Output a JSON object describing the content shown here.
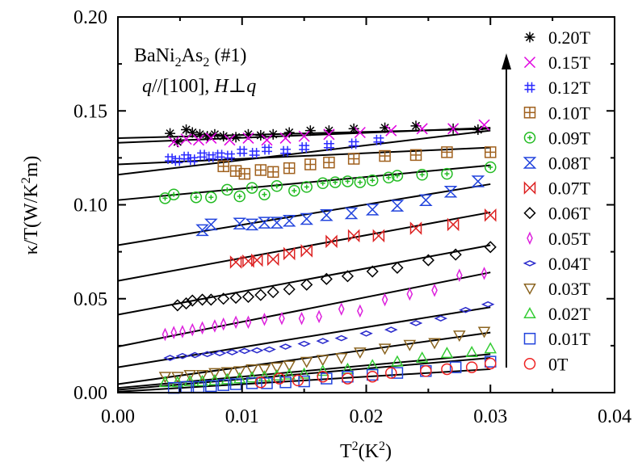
{
  "chart_data": {
    "type": "scatter",
    "title_lines": {
      "compound": "BaNi",
      "sub1": "2",
      "compound2": "As",
      "sub2": "2",
      "sample": " (#1)",
      "q": "q",
      "geometry": "//[100], ",
      "H": "H",
      "perp": "⊥",
      "q2": "q"
    },
    "xlabel": {
      "main": "T",
      "sup": "2",
      "unit": "(K",
      "unitsup": "2",
      "close": ")"
    },
    "ylabel": {
      "main": "κ/T(W/K",
      "sup": "2",
      "unit": "m)"
    },
    "xlim": [
      0.0,
      0.04
    ],
    "ylim": [
      0.0,
      0.2
    ],
    "xticks": [
      0.0,
      0.01,
      0.02,
      0.03,
      0.04
    ],
    "xtick_labels": [
      "0.00",
      "0.01",
      "0.02",
      "0.03",
      "0.04"
    ],
    "yticks": [
      0.0,
      0.05,
      0.1,
      0.15,
      0.2
    ],
    "ytick_labels": [
      "0.00",
      "0.05",
      "0.10",
      "0.15",
      "0.20"
    ],
    "arrow": "increasing field",
    "series": [
      {
        "name": "0.20T",
        "marker": "asterisk",
        "color": "#000000",
        "fit": [
          0.0,
          0.1355,
          0.03,
          0.1405
        ],
        "x": [
          0.0042,
          0.0048,
          0.0055,
          0.006,
          0.0066,
          0.0072,
          0.0078,
          0.0085,
          0.0095,
          0.0105,
          0.0115,
          0.0125,
          0.0138,
          0.0155,
          0.017,
          0.019,
          0.0215,
          0.024,
          0.027,
          0.029
        ],
        "y": [
          0.138,
          0.1335,
          0.14,
          0.1385,
          0.1375,
          0.1365,
          0.1375,
          0.1365,
          0.136,
          0.1375,
          0.137,
          0.1375,
          0.1385,
          0.1395,
          0.1395,
          0.1405,
          0.141,
          0.142,
          0.1405,
          0.14
        ]
      },
      {
        "name": "0.15T",
        "marker": "x",
        "color": "#e000e0",
        "fit": [
          0.0,
          0.133,
          0.03,
          0.141
        ],
        "x": [
          0.0045,
          0.0055,
          0.0065,
          0.0075,
          0.009,
          0.0105,
          0.012,
          0.0135,
          0.015,
          0.017,
          0.0195,
          0.022,
          0.0245,
          0.027,
          0.0295
        ],
        "y": [
          0.1335,
          0.135,
          0.1345,
          0.1355,
          0.1345,
          0.1355,
          0.1345,
          0.1355,
          0.1365,
          0.1375,
          0.1385,
          0.1395,
          0.1405,
          0.1405,
          0.1425
        ]
      },
      {
        "name": "0.12T",
        "marker": "hash",
        "color": "#2a2aff",
        "fit": [
          0.0,
          0.116,
          0.03,
          0.1395
        ],
        "x": [
          0.0042,
          0.0048,
          0.0055,
          0.006,
          0.0068,
          0.0075,
          0.0082,
          0.009,
          0.01,
          0.011,
          0.012,
          0.0135,
          0.015,
          0.017,
          0.019,
          0.021
        ],
        "y": [
          0.1245,
          0.1235,
          0.1255,
          0.124,
          0.1265,
          0.1255,
          0.1265,
          0.126,
          0.1285,
          0.1275,
          0.1295,
          0.1285,
          0.1305,
          0.1315,
          0.1325,
          0.1345
        ]
      },
      {
        "name": "0.10T",
        "marker": "squareplus",
        "color": "#a0611e",
        "fit": [
          0.0,
          0.1215,
          0.03,
          0.1305
        ],
        "x": [
          0.0085,
          0.0095,
          0.0102,
          0.0115,
          0.0125,
          0.0138,
          0.0155,
          0.017,
          0.019,
          0.0215,
          0.024,
          0.0265,
          0.03
        ],
        "y": [
          0.1205,
          0.118,
          0.1165,
          0.1185,
          0.1175,
          0.1195,
          0.1215,
          0.1225,
          0.1245,
          0.126,
          0.1265,
          0.128,
          0.128
        ]
      },
      {
        "name": "0.09T",
        "marker": "circleplus",
        "color": "#22bb22",
        "fit": [
          0.0,
          0.1025,
          0.03,
          0.121
        ],
        "x": [
          0.0038,
          0.0045,
          0.0063,
          0.0075,
          0.0088,
          0.0098,
          0.0108,
          0.0118,
          0.0128,
          0.0142,
          0.0152,
          0.0165,
          0.0175,
          0.0185,
          0.0195,
          0.0205,
          0.0218,
          0.0225,
          0.0245,
          0.0265,
          0.03
        ],
        "y": [
          0.1035,
          0.1055,
          0.104,
          0.104,
          0.108,
          0.1045,
          0.109,
          0.1055,
          0.11,
          0.1075,
          0.1095,
          0.1115,
          0.112,
          0.1125,
          0.112,
          0.113,
          0.1145,
          0.1155,
          0.116,
          0.1165,
          0.12
        ]
      },
      {
        "name": "0.08T",
        "marker": "hourglass",
        "color": "#2244dd",
        "fit": [
          0.0,
          0.0785,
          0.03,
          0.111
        ],
        "x": [
          0.0068,
          0.0075,
          0.0098,
          0.0108,
          0.0118,
          0.0128,
          0.0138,
          0.0152,
          0.0168,
          0.0188,
          0.0205,
          0.0225,
          0.0248,
          0.0268,
          0.029
        ],
        "y": [
          0.0865,
          0.0895,
          0.09,
          0.0895,
          0.0905,
          0.0905,
          0.0915,
          0.0925,
          0.0945,
          0.0955,
          0.0975,
          0.0995,
          0.1025,
          0.107,
          0.1125
        ]
      },
      {
        "name": "0.07T",
        "marker": "bowtie",
        "color": "#dd2222",
        "fit": [
          0.0,
          0.0595,
          0.03,
          0.096
        ],
        "x": [
          0.0095,
          0.0105,
          0.0112,
          0.0125,
          0.0138,
          0.0152,
          0.0172,
          0.019,
          0.021,
          0.024,
          0.027,
          0.03
        ],
        "y": [
          0.0695,
          0.07,
          0.0705,
          0.071,
          0.074,
          0.0755,
          0.0805,
          0.0835,
          0.0835,
          0.0875,
          0.0895,
          0.0945
        ]
      },
      {
        "name": "0.06T",
        "marker": "diamond",
        "color": "#000000",
        "fit": [
          0.0,
          0.0415,
          0.03,
          0.0785
        ],
        "x": [
          0.0048,
          0.0055,
          0.006,
          0.0068,
          0.0075,
          0.0085,
          0.0095,
          0.0105,
          0.0115,
          0.0125,
          0.0138,
          0.0152,
          0.0168,
          0.0185,
          0.0205,
          0.0225,
          0.025,
          0.0272,
          0.03
        ],
        "y": [
          0.0465,
          0.0475,
          0.049,
          0.0495,
          0.0495,
          0.05,
          0.0505,
          0.051,
          0.052,
          0.0535,
          0.055,
          0.0575,
          0.0605,
          0.062,
          0.0645,
          0.0665,
          0.0705,
          0.0735,
          0.0775
        ]
      },
      {
        "name": "0.05T",
        "marker": "thindiamond",
        "color": "#dd22dd",
        "fit": [
          0.0,
          0.0245,
          0.03,
          0.064
        ],
        "x": [
          0.0038,
          0.0045,
          0.0052,
          0.006,
          0.0068,
          0.0078,
          0.0085,
          0.0095,
          0.0105,
          0.0118,
          0.0132,
          0.0148,
          0.0162,
          0.018,
          0.0195,
          0.0215,
          0.0235,
          0.0255,
          0.0275,
          0.0295
        ],
        "y": [
          0.031,
          0.032,
          0.0325,
          0.0335,
          0.0345,
          0.0355,
          0.0365,
          0.0375,
          0.0375,
          0.039,
          0.0395,
          0.0395,
          0.0405,
          0.0445,
          0.0435,
          0.0495,
          0.0525,
          0.0545,
          0.0625,
          0.0635
        ]
      },
      {
        "name": "0.04T",
        "marker": "flatdiamond",
        "color": "#2a2acc",
        "fit": [
          0.0,
          0.0135,
          0.03,
          0.0455
        ],
        "x": [
          0.0042,
          0.0052,
          0.0062,
          0.0072,
          0.0082,
          0.0092,
          0.0102,
          0.0112,
          0.0122,
          0.0135,
          0.015,
          0.0165,
          0.018,
          0.02,
          0.022,
          0.024,
          0.026,
          0.028,
          0.0298
        ],
        "y": [
          0.0185,
          0.0195,
          0.02,
          0.0205,
          0.021,
          0.0215,
          0.0222,
          0.0225,
          0.023,
          0.0245,
          0.026,
          0.0275,
          0.029,
          0.0315,
          0.0335,
          0.037,
          0.0395,
          0.044,
          0.047
        ]
      },
      {
        "name": "0.03T",
        "marker": "triangledown",
        "color": "#8b6420",
        "fit": [
          0.0,
          0.0045,
          0.03,
          0.032
        ],
        "x": [
          0.0038,
          0.0048,
          0.0058,
          0.0068,
          0.0078,
          0.0088,
          0.0098,
          0.0108,
          0.0118,
          0.0128,
          0.0138,
          0.0152,
          0.0165,
          0.018,
          0.0195,
          0.0215,
          0.0235,
          0.0255,
          0.0275,
          0.0295
        ],
        "y": [
          0.0085,
          0.0085,
          0.0095,
          0.0095,
          0.0105,
          0.011,
          0.0115,
          0.0125,
          0.0125,
          0.0135,
          0.0145,
          0.0165,
          0.0175,
          0.0185,
          0.0215,
          0.0235,
          0.0255,
          0.0265,
          0.0305,
          0.0325
        ]
      },
      {
        "name": "0.02T",
        "marker": "triangle",
        "color": "#33cc33",
        "fit": [
          0.0,
          0.0025,
          0.03,
          0.0205
        ],
        "x": [
          0.0038,
          0.0048,
          0.0058,
          0.0068,
          0.0078,
          0.0088,
          0.0098,
          0.0108,
          0.0118,
          0.0128,
          0.0138,
          0.015,
          0.0165,
          0.0185,
          0.0205,
          0.0225,
          0.0245,
          0.0265,
          0.0285,
          0.03
        ],
        "y": [
          0.0055,
          0.0055,
          0.006,
          0.006,
          0.0065,
          0.007,
          0.0075,
          0.008,
          0.0085,
          0.009,
          0.0095,
          0.01,
          0.0115,
          0.0125,
          0.0145,
          0.0165,
          0.0185,
          0.021,
          0.0215,
          0.0235
        ]
      },
      {
        "name": "0.01T",
        "marker": "square",
        "color": "#2244dd",
        "fit": [
          0.0,
          0.0015,
          0.03,
          0.0185
        ],
        "x": [
          0.0045,
          0.0055,
          0.0065,
          0.0075,
          0.0085,
          0.0095,
          0.0108,
          0.012,
          0.0135,
          0.015,
          0.0168,
          0.0185,
          0.0205,
          0.0225,
          0.0248,
          0.0272,
          0.03
        ],
        "y": [
          0.0025,
          0.003,
          0.003,
          0.0035,
          0.004,
          0.0045,
          0.005,
          0.005,
          0.0055,
          0.006,
          0.0075,
          0.0085,
          0.0095,
          0.0105,
          0.0115,
          0.0135,
          0.0165
        ]
      },
      {
        "name": "0T",
        "marker": "circle",
        "color": "#ee2222",
        "fit": [
          0.0,
          0.0005,
          0.03,
          0.0125
        ],
        "x": [
          0.0115,
          0.013,
          0.0145,
          0.0165,
          0.0185,
          0.0205,
          0.022,
          0.0248,
          0.0265,
          0.0285,
          0.03
        ],
        "y": [
          0.0055,
          0.0075,
          0.0065,
          0.0085,
          0.0075,
          0.0085,
          0.0105,
          0.0115,
          0.0125,
          0.0135,
          0.0155
        ]
      }
    ]
  }
}
